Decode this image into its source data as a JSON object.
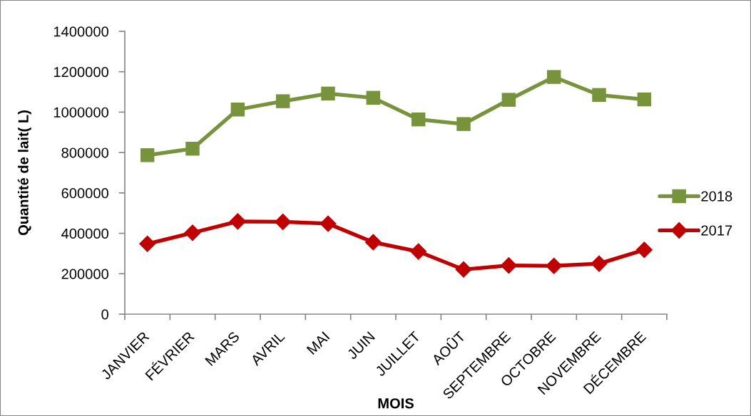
{
  "chart_data": {
    "type": "line",
    "xlabel": "MOIS",
    "ylabel": "Quantité de lait( L)",
    "categories": [
      "JANVIER",
      "FÉVRIER",
      "MARS",
      "AVRIL",
      "MAI",
      "JUIN",
      "JUILLET",
      "AOÛT",
      "SEPTEMBRE",
      "OCTOBRE",
      "NOVEMBRE",
      "DÉCEMBRE"
    ],
    "series": [
      {
        "name": "2018",
        "color": "#77933c",
        "marker": "square",
        "values": [
          787000,
          819000,
          1013000,
          1054000,
          1092000,
          1071000,
          964000,
          941000,
          1061000,
          1174000,
          1085000,
          1063000
        ]
      },
      {
        "name": "2017",
        "color": "#c00000",
        "marker": "diamond",
        "values": [
          348000,
          403000,
          459000,
          457000,
          448000,
          356000,
          310000,
          221000,
          241000,
          239000,
          250000,
          318000
        ]
      }
    ],
    "ylim": [
      0,
      1400000
    ],
    "yticks": [
      0,
      200000,
      400000,
      600000,
      800000,
      1000000,
      1200000,
      1400000
    ],
    "grid": false,
    "legend": "right",
    "line_style": "solid"
  }
}
